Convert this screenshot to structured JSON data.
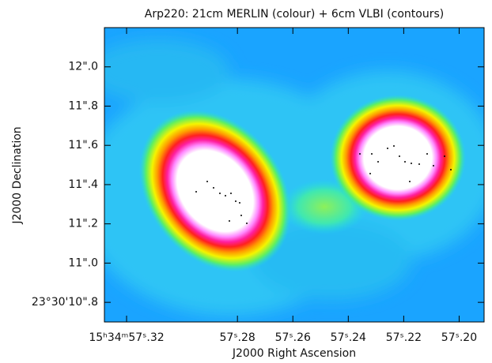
{
  "chart_data": {
    "type": "image",
    "title": "Arp220: 21cm MERLIN (colour) + 6cm VLBI (contours)",
    "x_label": "J2000 Right Ascension",
    "y_label": "J2000 Declination",
    "xlim": [
      57.328,
      57.191
    ],
    "ylim": [
      10.7,
      12.2
    ],
    "xticks": [
      {
        "value": 57.32,
        "label": "15ʰ34ᵐ57ˢ.32"
      },
      {
        "value": 57.28,
        "label": "57ˢ.28"
      },
      {
        "value": 57.26,
        "label": "57ˢ.26"
      },
      {
        "value": 57.24,
        "label": "57ˢ.24"
      },
      {
        "value": 57.22,
        "label": "57ˢ.22"
      },
      {
        "value": 57.2,
        "label": "57ˢ.20"
      }
    ],
    "yticks": [
      {
        "value": 12.0,
        "label": "12\".0"
      },
      {
        "value": 11.8,
        "label": "11\".8"
      },
      {
        "value": 11.6,
        "label": "11\".6"
      },
      {
        "value": 11.4,
        "label": "11\".4"
      },
      {
        "value": 11.2,
        "label": "11\".2"
      },
      {
        "value": 11.0,
        "label": "11\".0"
      },
      {
        "value": 10.8,
        "label": "23°30'10\".8"
      }
    ]
  }
}
